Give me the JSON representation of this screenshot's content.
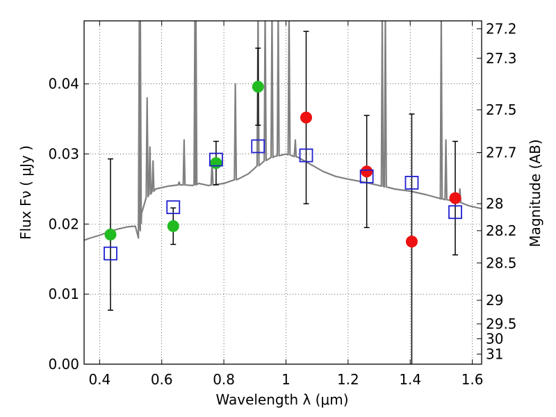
{
  "chart_data": {
    "type": "scatter",
    "title": "",
    "xlabel": "Wavelength  λ (μm)",
    "ylabel": "Flux  Fν  ( μJy )",
    "y2label": "Magnitude (AB)",
    "xlim": [
      0.35,
      1.63
    ],
    "ylim": [
      0.0,
      0.049
    ],
    "grid": true,
    "x_ticks": [
      {
        "value": 0.4,
        "label": "0.4"
      },
      {
        "value": 0.6,
        "label": "0.6"
      },
      {
        "value": 0.8,
        "label": "0.8"
      },
      {
        "value": 1.0,
        "label": "1"
      },
      {
        "value": 1.2,
        "label": "1.2"
      },
      {
        "value": 1.4,
        "label": "1.4"
      },
      {
        "value": 1.6,
        "label": "1.6"
      }
    ],
    "y_ticks": [
      {
        "value": 0.0,
        "label": "0.00"
      },
      {
        "value": 0.01,
        "label": "0.01"
      },
      {
        "value": 0.02,
        "label": "0.02"
      },
      {
        "value": 0.03,
        "label": "0.03"
      },
      {
        "value": 0.04,
        "label": "0.04"
      }
    ],
    "y2_ticks": [
      {
        "label": "27.2"
      },
      {
        "label": "27.3"
      },
      {
        "label": "27.5"
      },
      {
        "label": "27.7"
      },
      {
        "label": "28"
      },
      {
        "label": "28.2"
      },
      {
        "label": "28.5"
      },
      {
        "label": "29"
      },
      {
        "label": "29.5"
      },
      {
        "label": "30"
      },
      {
        "label": "31"
      }
    ],
    "series": [
      {
        "kind": "spectrum",
        "color": "#808080",
        "continuum": [
          [
            0.35,
            0.0177
          ],
          [
            0.37,
            0.018
          ],
          [
            0.4,
            0.0184
          ],
          [
            0.43,
            0.0189
          ],
          [
            0.46,
            0.0193
          ],
          [
            0.49,
            0.0196
          ],
          [
            0.515,
            0.0197
          ],
          [
            0.525,
            0.018
          ],
          [
            0.535,
            0.0215
          ],
          [
            0.55,
            0.0238
          ],
          [
            0.58,
            0.025
          ],
          [
            0.62,
            0.0254
          ],
          [
            0.66,
            0.0256
          ],
          [
            0.7,
            0.0255
          ],
          [
            0.72,
            0.0258
          ],
          [
            0.75,
            0.0255
          ],
          [
            0.8,
            0.0258
          ],
          [
            0.85,
            0.0265
          ],
          [
            0.88,
            0.0272
          ],
          [
            0.9,
            0.028
          ],
          [
            0.93,
            0.029
          ],
          [
            0.96,
            0.0296
          ],
          [
            1.0,
            0.03
          ],
          [
            1.04,
            0.0295
          ],
          [
            1.08,
            0.0285
          ],
          [
            1.12,
            0.0275
          ],
          [
            1.16,
            0.0268
          ],
          [
            1.2,
            0.0264
          ],
          [
            1.25,
            0.026
          ],
          [
            1.3,
            0.0255
          ],
          [
            1.35,
            0.025
          ],
          [
            1.4,
            0.0247
          ],
          [
            1.45,
            0.0242
          ],
          [
            1.5,
            0.0236
          ],
          [
            1.55,
            0.0232
          ],
          [
            1.59,
            0.0226
          ],
          [
            1.63,
            0.0222
          ]
        ],
        "emission_lines": [
          [
            0.528,
            0.05
          ],
          [
            0.531,
            0.05
          ],
          [
            0.553,
            0.038
          ],
          [
            0.562,
            0.031
          ],
          [
            0.572,
            0.029
          ],
          [
            0.656,
            0.026
          ],
          [
            0.672,
            0.032
          ],
          [
            0.707,
            0.05
          ],
          [
            0.71,
            0.05
          ],
          [
            0.762,
            0.029
          ],
          [
            0.837,
            0.04
          ],
          [
            0.91,
            0.05
          ],
          [
            0.933,
            0.05
          ],
          [
            0.955,
            0.05
          ],
          [
            0.975,
            0.05
          ],
          [
            1.01,
            0.05
          ],
          [
            1.03,
            0.032
          ],
          [
            1.31,
            0.05
          ],
          [
            1.32,
            0.05
          ],
          [
            1.5,
            0.05
          ],
          [
            1.515,
            0.032
          ],
          [
            1.56,
            0.025
          ]
        ]
      },
      {
        "kind": "points",
        "marker": "circle",
        "color": "#22bb22",
        "points": [
          {
            "x": 0.435,
            "y": 0.0185,
            "err": 0.0108
          },
          {
            "x": 0.637,
            "y": 0.0197,
            "err": 0.0026
          },
          {
            "x": 0.775,
            "y": 0.0287,
            "err": 0.0031
          },
          {
            "x": 0.91,
            "y": 0.0396,
            "err": 0.0055
          }
        ]
      },
      {
        "kind": "points",
        "marker": "circle",
        "color": "#ee1111",
        "points": [
          {
            "x": 1.065,
            "y": 0.0352,
            "err": 0.0123
          },
          {
            "x": 1.26,
            "y": 0.0275,
            "err": 0.008
          },
          {
            "x": 1.405,
            "y": 0.0175,
            "err": 0.0182
          },
          {
            "x": 1.545,
            "y": 0.0237,
            "err": 0.0081
          }
        ]
      },
      {
        "kind": "points",
        "marker": "square",
        "color": "#1f1fcf",
        "points": [
          {
            "x": 0.435,
            "y": 0.0158
          },
          {
            "x": 0.637,
            "y": 0.0224
          },
          {
            "x": 0.775,
            "y": 0.0292
          },
          {
            "x": 0.91,
            "y": 0.0311
          },
          {
            "x": 1.065,
            "y": 0.0298
          },
          {
            "x": 1.26,
            "y": 0.0268
          },
          {
            "x": 1.405,
            "y": 0.0259
          },
          {
            "x": 1.545,
            "y": 0.0217
          }
        ]
      }
    ]
  }
}
